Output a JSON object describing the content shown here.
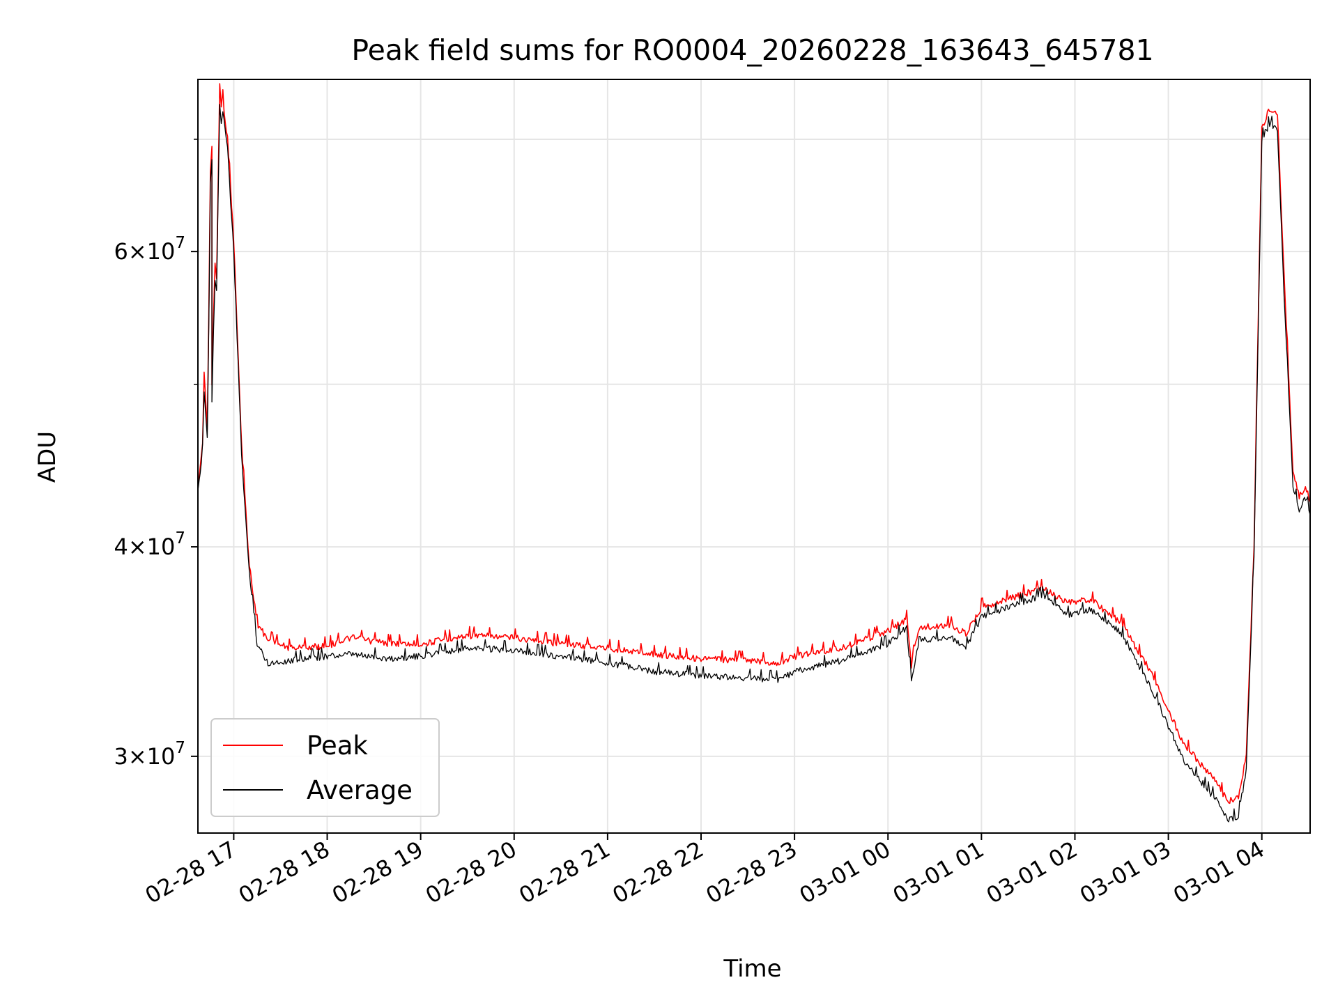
{
  "chart_data": {
    "type": "line",
    "title": "Peak field sums for RO0004_20260228_163643_645781",
    "xlabel": "Time",
    "ylabel": "ADU",
    "x_range": [
      "2026-02-28 16:37",
      "2026-03-01 04:31"
    ],
    "ylim": [
      27000000,
      76000000
    ],
    "y_scale": "log",
    "grid": true,
    "legend_position": "lower-left",
    "x_ticks": [
      {
        "value": "2026-02-28 17:00",
        "label": "02-28 17"
      },
      {
        "value": "2026-02-28 18:00",
        "label": "02-28 18"
      },
      {
        "value": "2026-02-28 19:00",
        "label": "02-28 19"
      },
      {
        "value": "2026-02-28 20:00",
        "label": "02-28 20"
      },
      {
        "value": "2026-02-28 21:00",
        "label": "02-28 21"
      },
      {
        "value": "2026-02-28 22:00",
        "label": "02-28 22"
      },
      {
        "value": "2026-02-28 23:00",
        "label": "02-28 23"
      },
      {
        "value": "2026-03-01 00:00",
        "label": "03-01 00"
      },
      {
        "value": "2026-03-01 01:00",
        "label": "03-01 01"
      },
      {
        "value": "2026-03-01 02:00",
        "label": "03-01 02"
      },
      {
        "value": "2026-03-01 03:00",
        "label": "03-01 03"
      },
      {
        "value": "2026-03-01 04:00",
        "label": "03-01 04"
      }
    ],
    "y_ticks": [
      {
        "value": 30000000,
        "mant": "3",
        "exp": "7"
      },
      {
        "value": 40000000,
        "mant": "4",
        "exp": "7"
      },
      {
        "value": 60000000,
        "mant": "6",
        "exp": "7"
      }
    ],
    "y_minor_ticks": [
      50000000,
      70000000
    ],
    "series": [
      {
        "name": "Peak",
        "color": "#ff0000",
        "points": [
          [
            "2026-02-28 16:37",
            43500000
          ],
          [
            "2026-02-28 16:40",
            46000000
          ],
          [
            "2026-02-28 16:41",
            51000000
          ],
          [
            "2026-02-28 16:42",
            49000000
          ],
          [
            "2026-02-28 16:43",
            47000000
          ],
          [
            "2026-02-28 16:44",
            55000000
          ],
          [
            "2026-02-28 16:45",
            67000000
          ],
          [
            "2026-02-28 16:46",
            69000000
          ],
          [
            "2026-02-28 16:46",
            50000000
          ],
          [
            "2026-02-28 16:47",
            55000000
          ],
          [
            "2026-02-28 16:48",
            59000000
          ],
          [
            "2026-02-28 16:49",
            58000000
          ],
          [
            "2026-02-28 16:50",
            66000000
          ],
          [
            "2026-02-28 16:51",
            75500000
          ],
          [
            "2026-02-28 16:52",
            73000000
          ],
          [
            "2026-02-28 16:53",
            74000000
          ],
          [
            "2026-02-28 16:56",
            70000000
          ],
          [
            "2026-02-28 17:00",
            61000000
          ],
          [
            "2026-02-28 17:05",
            46000000
          ],
          [
            "2026-02-28 17:10",
            39000000
          ],
          [
            "2026-02-28 17:15",
            36000000
          ],
          [
            "2026-02-28 17:22",
            35200000
          ],
          [
            "2026-02-28 17:35",
            34800000
          ],
          [
            "2026-02-28 18:00",
            34900000
          ],
          [
            "2026-02-28 18:15",
            35300000
          ],
          [
            "2026-02-28 18:40",
            35000000
          ],
          [
            "2026-02-28 19:00",
            35000000
          ],
          [
            "2026-02-28 19:30",
            35400000
          ],
          [
            "2026-02-28 20:00",
            35300000
          ],
          [
            "2026-02-28 20:30",
            35000000
          ],
          [
            "2026-02-28 21:00",
            34800000
          ],
          [
            "2026-02-28 21:30",
            34500000
          ],
          [
            "2026-02-28 22:00",
            34300000
          ],
          [
            "2026-02-28 22:30",
            34200000
          ],
          [
            "2026-02-28 22:50",
            34100000
          ],
          [
            "2026-02-28 23:00",
            34400000
          ],
          [
            "2026-02-28 23:30",
            34800000
          ],
          [
            "2026-03-01 00:00",
            35600000
          ],
          [
            "2026-03-01 00:12",
            36200000
          ],
          [
            "2026-03-01 00:15",
            34000000
          ],
          [
            "2026-03-01 00:20",
            35800000
          ],
          [
            "2026-03-01 00:40",
            35900000
          ],
          [
            "2026-03-01 00:50",
            35500000
          ],
          [
            "2026-03-01 01:00",
            36800000
          ],
          [
            "2026-03-01 01:20",
            37300000
          ],
          [
            "2026-03-01 01:40",
            37800000
          ],
          [
            "2026-03-01 01:55",
            37000000
          ],
          [
            "2026-03-01 02:10",
            37200000
          ],
          [
            "2026-03-01 02:30",
            36000000
          ],
          [
            "2026-03-01 02:50",
            33500000
          ],
          [
            "2026-03-01 03:10",
            30500000
          ],
          [
            "2026-03-01 03:30",
            29000000
          ],
          [
            "2026-03-01 03:38",
            28200000
          ],
          [
            "2026-03-01 03:45",
            28300000
          ],
          [
            "2026-03-01 03:50",
            30000000
          ],
          [
            "2026-03-01 03:55",
            40000000
          ],
          [
            "2026-03-01 04:00",
            71000000
          ],
          [
            "2026-03-01 04:05",
            73000000
          ],
          [
            "2026-03-01 04:10",
            72500000
          ],
          [
            "2026-03-01 04:15",
            56000000
          ],
          [
            "2026-03-01 04:20",
            44500000
          ],
          [
            "2026-03-01 04:24",
            42800000
          ],
          [
            "2026-03-01 04:28",
            43500000
          ],
          [
            "2026-03-01 04:31",
            42500000
          ]
        ]
      },
      {
        "name": "Average",
        "color": "#000000",
        "points": [
          [
            "2026-02-28 16:37",
            43000000
          ],
          [
            "2026-02-28 16:40",
            45500000
          ],
          [
            "2026-02-28 16:41",
            49500000
          ],
          [
            "2026-02-28 16:42",
            48000000
          ],
          [
            "2026-02-28 16:43",
            46500000
          ],
          [
            "2026-02-28 16:44",
            54000000
          ],
          [
            "2026-02-28 16:45",
            66000000
          ],
          [
            "2026-02-28 16:46",
            68000000
          ],
          [
            "2026-02-28 16:46",
            49000000
          ],
          [
            "2026-02-28 16:47",
            54000000
          ],
          [
            "2026-02-28 16:48",
            57500000
          ],
          [
            "2026-02-28 16:49",
            57000000
          ],
          [
            "2026-02-28 16:50",
            65000000
          ],
          [
            "2026-02-28 16:51",
            72500000
          ],
          [
            "2026-02-28 16:52",
            71500000
          ],
          [
            "2026-02-28 16:53",
            73000000
          ],
          [
            "2026-02-28 16:56",
            69000000
          ],
          [
            "2026-02-28 17:00",
            60000000
          ],
          [
            "2026-02-28 17:05",
            45500000
          ],
          [
            "2026-02-28 17:10",
            38500000
          ],
          [
            "2026-02-28 17:15",
            35000000
          ],
          [
            "2026-02-28 17:22",
            34100000
          ],
          [
            "2026-02-28 17:35",
            34200000
          ],
          [
            "2026-02-28 18:00",
            34400000
          ],
          [
            "2026-02-28 18:15",
            34500000
          ],
          [
            "2026-02-28 18:40",
            34300000
          ],
          [
            "2026-02-28 19:00",
            34400000
          ],
          [
            "2026-02-28 19:30",
            34800000
          ],
          [
            "2026-02-28 20:00",
            34700000
          ],
          [
            "2026-02-28 20:30",
            34400000
          ],
          [
            "2026-02-28 21:00",
            34100000
          ],
          [
            "2026-02-28 21:30",
            33700000
          ],
          [
            "2026-02-28 22:00",
            33500000
          ],
          [
            "2026-02-28 22:30",
            33400000
          ],
          [
            "2026-02-28 22:50",
            33300000
          ],
          [
            "2026-02-28 23:00",
            33700000
          ],
          [
            "2026-02-28 23:30",
            34200000
          ],
          [
            "2026-03-01 00:00",
            35000000
          ],
          [
            "2026-03-01 00:12",
            35800000
          ],
          [
            "2026-03-01 00:15",
            33300000
          ],
          [
            "2026-03-01 00:20",
            35200000
          ],
          [
            "2026-03-01 00:40",
            35300000
          ],
          [
            "2026-03-01 00:50",
            34800000
          ],
          [
            "2026-03-01 01:00",
            36300000
          ],
          [
            "2026-03-01 01:20",
            36900000
          ],
          [
            "2026-03-01 01:40",
            37400000
          ],
          [
            "2026-03-01 01:55",
            36400000
          ],
          [
            "2026-03-01 02:10",
            36700000
          ],
          [
            "2026-03-01 02:30",
            35500000
          ],
          [
            "2026-03-01 02:50",
            32800000
          ],
          [
            "2026-03-01 03:10",
            29800000
          ],
          [
            "2026-03-01 03:30",
            28300000
          ],
          [
            "2026-03-01 03:38",
            27500000
          ],
          [
            "2026-03-01 03:45",
            27600000
          ],
          [
            "2026-03-01 03:50",
            29500000
          ],
          [
            "2026-03-01 03:55",
            39500000
          ],
          [
            "2026-03-01 04:00",
            70000000
          ],
          [
            "2026-03-01 04:05",
            71500000
          ],
          [
            "2026-03-01 04:10",
            71000000
          ],
          [
            "2026-03-01 04:15",
            54500000
          ],
          [
            "2026-03-01 04:20",
            43500000
          ],
          [
            "2026-03-01 04:24",
            42000000
          ],
          [
            "2026-03-01 04:28",
            42800000
          ],
          [
            "2026-03-01 04:31",
            41800000
          ]
        ]
      }
    ]
  }
}
